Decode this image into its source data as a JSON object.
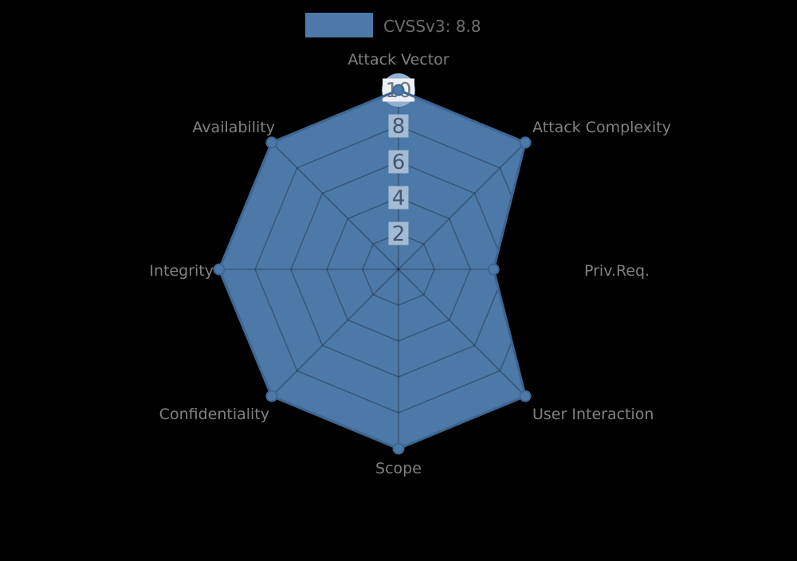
{
  "background": "#000000",
  "legend": {
    "label": "CVSSv3: 8.8",
    "swatch_color": "#4d79a8"
  },
  "chart_data": {
    "type": "radar",
    "title": "",
    "axes": [
      "Attack Vector",
      "Attack Complexity",
      "Priv.Req.",
      "User Interaction",
      "Scope",
      "Confidentiality",
      "Integrity",
      "Availability"
    ],
    "series": [
      {
        "name": "CVSSv3: 8.8",
        "values": [
          10,
          10,
          5.3,
          10,
          10,
          10,
          10,
          10
        ]
      }
    ],
    "radial_ticks": [
      2,
      4,
      6,
      8,
      10
    ],
    "rlim": [
      0,
      10
    ],
    "grid": true,
    "legend_position": "top-center",
    "highlight_vertex": {
      "axis_index": 0,
      "marker_radius": 21
    }
  },
  "colors": {
    "fill": "#4d79a8",
    "stroke": "#3f6693",
    "vertex_dot_fill": "#4d79a8",
    "vertex_dot_edge": "#3f6693",
    "apex_marker": "#92b0cf",
    "tick_box": "#a3bbd3",
    "tick_box_outer": "#edf0f4",
    "tick_text": "#44556e",
    "tick_text_outer": "#717783",
    "axis_label": "#818181",
    "legend_text": "#6e6e6e",
    "grid_line": "rgba(0,0,0,0.28)"
  }
}
